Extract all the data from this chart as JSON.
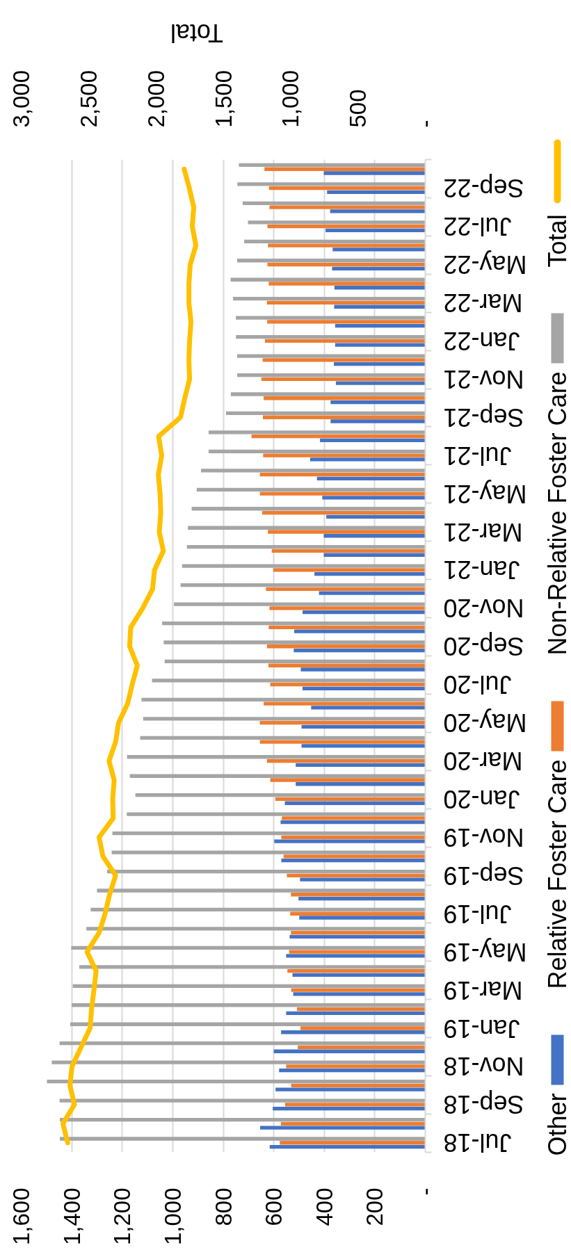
{
  "chart_data": {
    "type": "bar",
    "orientation": "horizontal",
    "x2label": "Total",
    "categories": [
      null,
      "Sep-22",
      null,
      "Jul-22",
      null,
      "May-22",
      null,
      "Mar-22",
      null,
      "Jan-22",
      null,
      "Nov-21",
      null,
      "Sep-21",
      null,
      "Jul-21",
      null,
      "May-21",
      null,
      "Mar-21",
      null,
      "Jan-21",
      null,
      "Nov-20",
      null,
      "Sep-20",
      null,
      "Jul-20",
      null,
      "May-20",
      null,
      "Mar-20",
      null,
      "Jan-20",
      null,
      "Nov-19",
      null,
      "Sep-19",
      null,
      "Jul-19",
      null,
      "May-19",
      null,
      "Mar-19",
      null,
      "Jan-19",
      null,
      "Nov-18",
      null,
      "Sep-18",
      null,
      "Jul-18"
    ],
    "series": [
      {
        "name": "Other",
        "color": "#4472c4",
        "values": [
          402,
          389,
          377,
          395,
          367,
          369,
          360,
          361,
          357,
          357,
          362,
          354,
          375,
          375,
          417,
          456,
          429,
          408,
          392,
          402,
          402,
          439,
          421,
          486,
          519,
          521,
          493,
          486,
          452,
          490,
          490,
          513,
          513,
          556,
          573,
          598,
          570,
          496,
          502,
          499,
          537,
          551,
          526,
          523,
          551,
          571,
          600,
          579,
          593,
          604,
          654,
          616
        ]
      },
      {
        "name": "Relative Foster Care",
        "color": "#ed7d31",
        "values": [
          637,
          619,
          617,
          625,
          623,
          625,
          620,
          627,
          626,
          635,
          644,
          649,
          640,
          643,
          688,
          642,
          655,
          655,
          646,
          623,
          608,
          602,
          631,
          617,
          620,
          627,
          621,
          614,
          640,
          655,
          655,
          627,
          614,
          594,
          568,
          570,
          561,
          548,
          532,
          535,
          532,
          539,
          546,
          531,
          508,
          494,
          505,
          551,
          531,
          555,
          572,
          576
        ]
      },
      {
        "name": "Non-Relative Foster Care",
        "color": "#a5a5a5",
        "values": [
          738,
          744,
          723,
          702,
          717,
          745,
          771,
          761,
          750,
          750,
          745,
          745,
          770,
          789,
          858,
          858,
          888,
          905,
          925,
          940,
          944,
          963,
          969,
          995,
          1042,
          1036,
          1032,
          1082,
          1124,
          1117,
          1129,
          1181,
          1170,
          1148,
          1182,
          1239,
          1242,
          1260,
          1300,
          1325,
          1342,
          1402,
          1370,
          1396,
          1400,
          1406,
          1448,
          1479,
          1498,
          1448,
          1447,
          1447
        ]
      },
      {
        "name": "Total",
        "type": "line",
        "axis": "x2",
        "color": "#ffc000",
        "values": [
          1790,
          1752,
          1719,
          1730,
          1703,
          1745,
          1755,
          1755,
          1740,
          1750,
          1755,
          1750,
          1786,
          1817,
          1980,
          1957,
          1982,
          1969,
          1964,
          1975,
          1945,
          2010,
          2025,
          2098,
          2187,
          2195,
          2138,
          2176,
          2210,
          2277,
          2299,
          2348,
          2310,
          2321,
          2317,
          2422,
          2393,
          2299,
          2344,
          2377,
          2422,
          2511,
          2444,
          2460,
          2478,
          2489,
          2556,
          2623,
          2638,
          2605,
          2690,
          2655
        ]
      }
    ],
    "xlim": [
      1600,
      0
    ],
    "xticks": [
      {
        "value": 0,
        "label": "-"
      },
      200,
      400,
      600,
      800,
      {
        "value": 1000,
        "label": "1,000"
      },
      {
        "value": 1200,
        "label": "1,200"
      },
      {
        "value": 1400,
        "label": "1,400"
      },
      {
        "value": 1600,
        "label": "1,600"
      }
    ],
    "x2lim": [
      3000,
      0
    ],
    "x2ticks": [
      {
        "value": 0,
        "label": "-"
      },
      500,
      {
        "value": 1000,
        "label": "1,000"
      },
      {
        "value": 1500,
        "label": "1,500"
      },
      {
        "value": 2000,
        "label": "2,000"
      },
      {
        "value": 2500,
        "label": "2,500"
      },
      {
        "value": 3000,
        "label": "3,000"
      }
    ],
    "grid": "x",
    "legend": "right"
  }
}
